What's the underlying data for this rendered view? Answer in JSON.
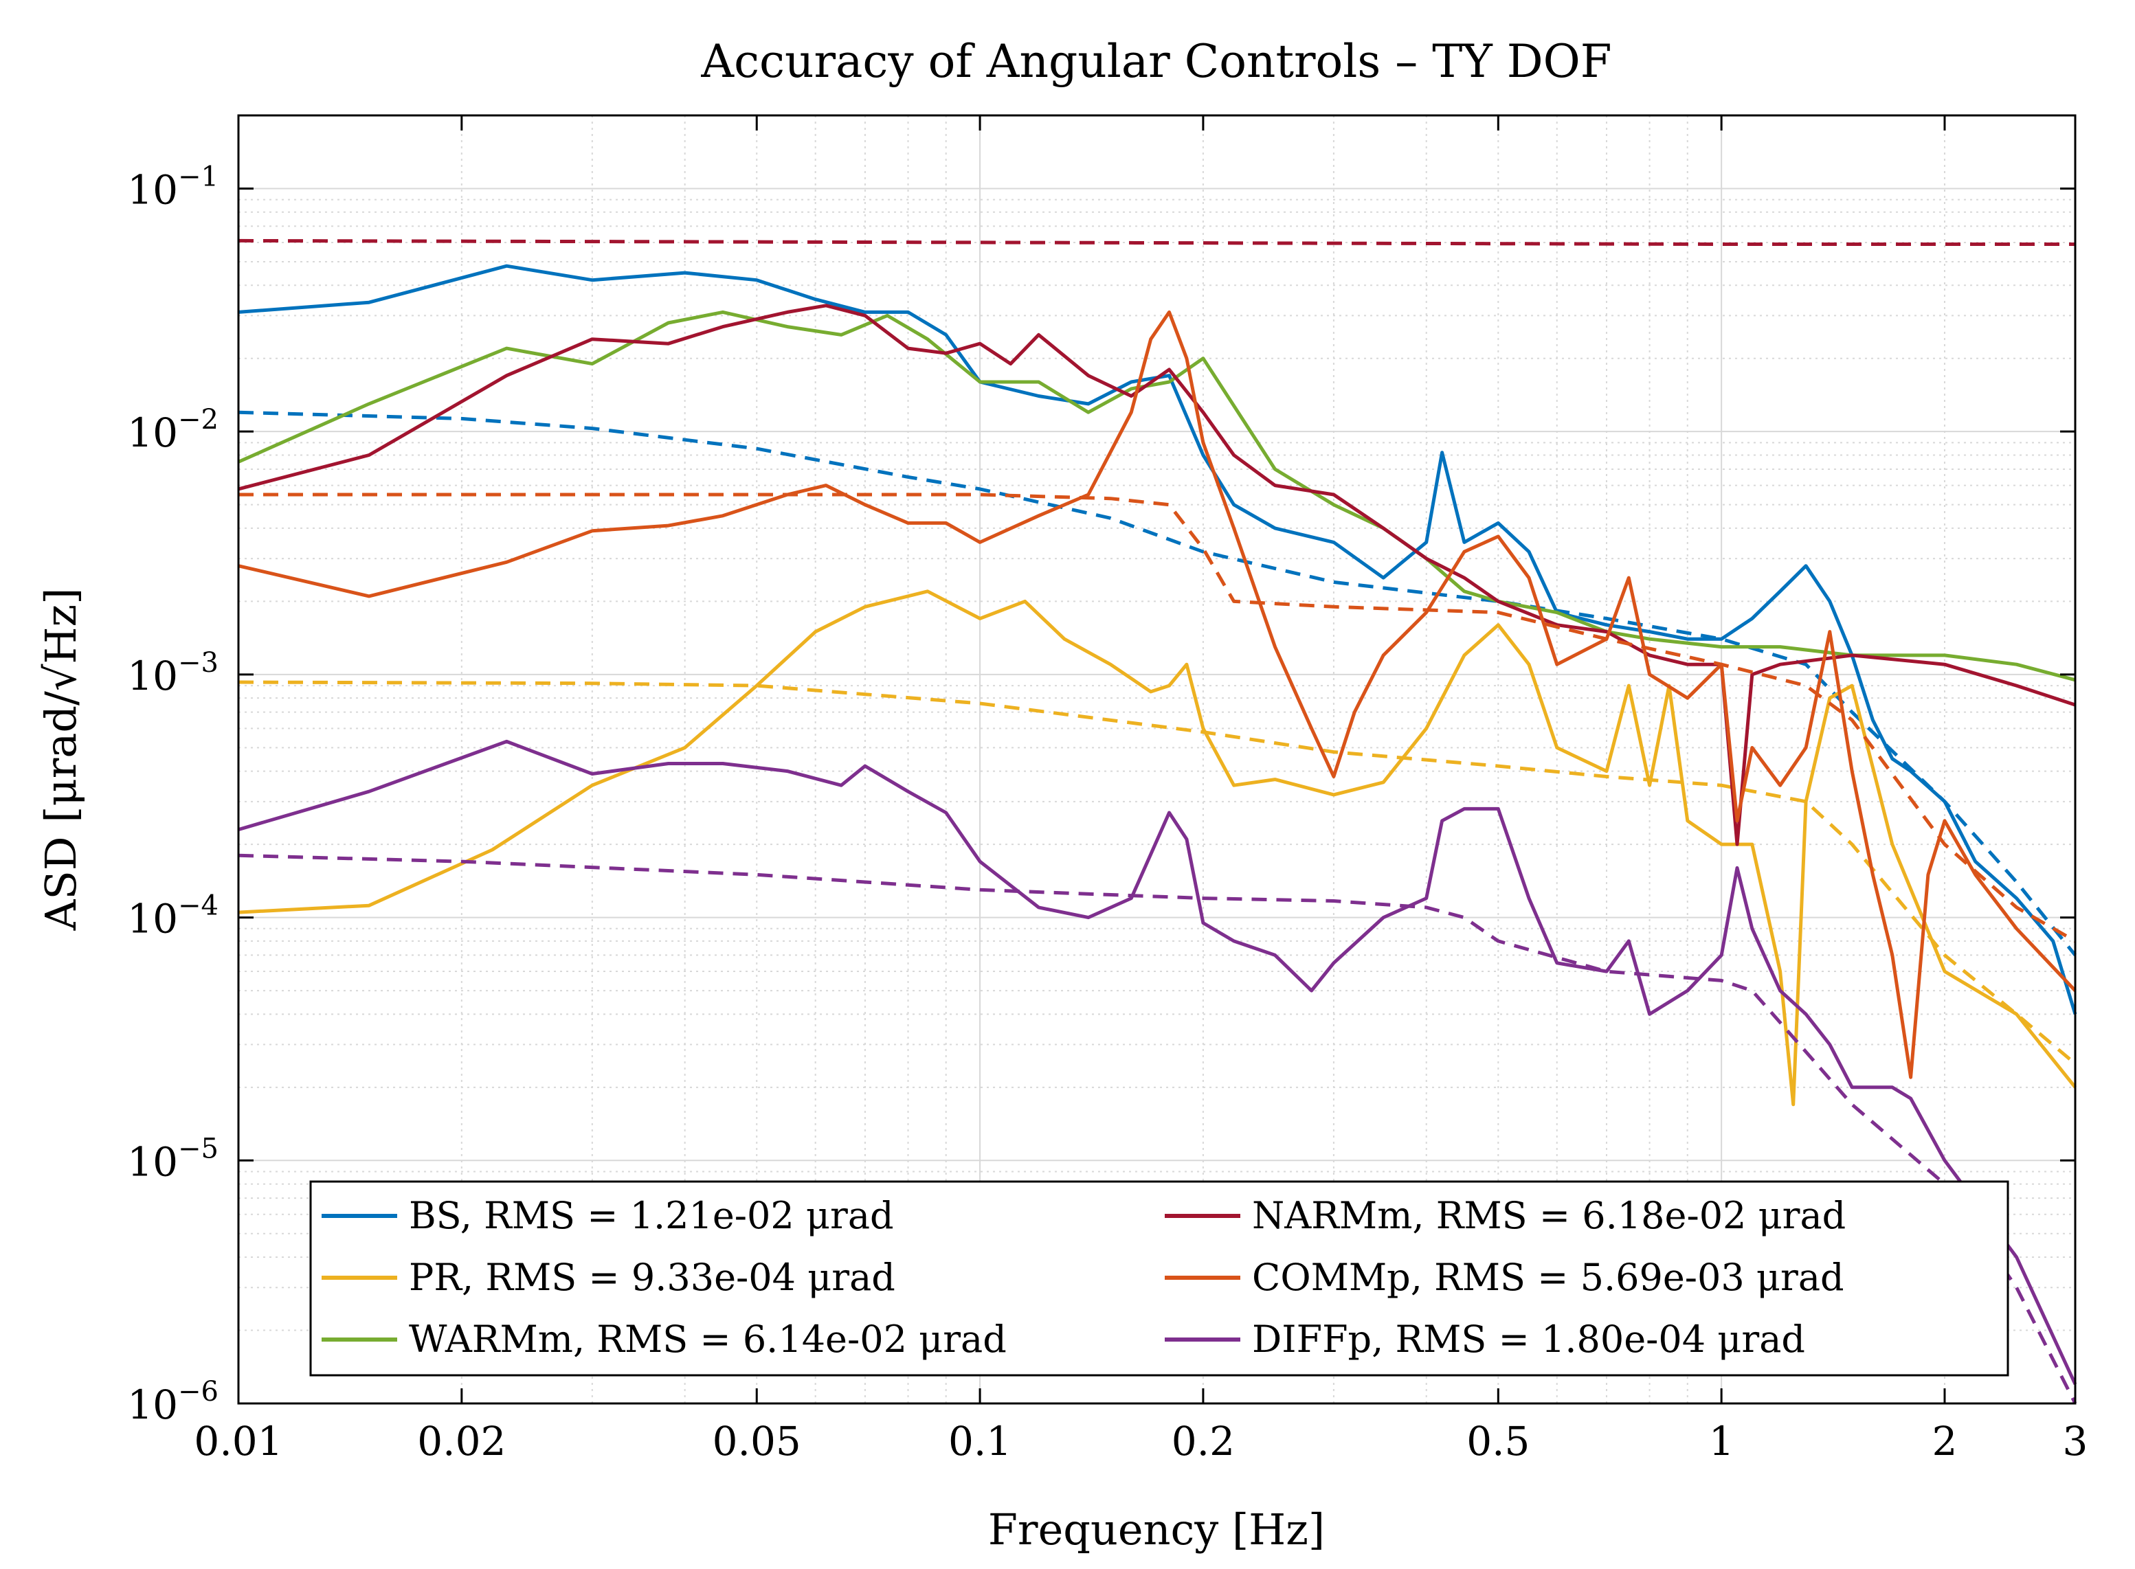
{
  "chart_data": {
    "type": "line",
    "title": "Accuracy of Angular Controls – TY DOF",
    "xlabel": "Frequency [Hz]",
    "ylabel": "ASD [μrad/√Hz]",
    "xscale": "log",
    "yscale": "log",
    "xlim": [
      0.01,
      3
    ],
    "ylim": [
      1e-06,
      0.2
    ],
    "x_ticks": [
      0.01,
      0.02,
      0.05,
      0.1,
      0.2,
      0.5,
      1,
      2,
      3
    ],
    "x_tick_labels": [
      "0.01",
      "0.02",
      "0.05",
      "0.1",
      "0.2",
      "0.5",
      "1",
      "2",
      "3"
    ],
    "y_ticks": [
      {
        "value": 0.1,
        "mantissa": "10",
        "exponent": "−1"
      },
      {
        "value": 0.01,
        "mantissa": "10",
        "exponent": "−2"
      },
      {
        "value": 0.001,
        "mantissa": "10",
        "exponent": "−3"
      },
      {
        "value": 0.0001,
        "mantissa": "10",
        "exponent": "−4"
      },
      {
        "value": 1e-05,
        "mantissa": "10",
        "exponent": "−5"
      },
      {
        "value": 1e-06,
        "mantissa": "10",
        "exponent": "−6"
      }
    ],
    "grid": true,
    "legend_placement": "bottom-center",
    "series": [
      {
        "name": "BS",
        "legend": "BS, RMS = 1.21e-02 μrad",
        "color": "#0072BD",
        "style": "solid",
        "x": [
          0.01,
          0.015,
          0.023,
          0.03,
          0.04,
          0.05,
          0.06,
          0.07,
          0.08,
          0.09,
          0.1,
          0.12,
          0.14,
          0.16,
          0.18,
          0.2,
          0.22,
          0.25,
          0.3,
          0.35,
          0.4,
          0.42,
          0.45,
          0.5,
          0.55,
          0.6,
          0.7,
          0.8,
          0.9,
          1.0,
          1.1,
          1.2,
          1.3,
          1.4,
          1.5,
          1.6,
          1.7,
          1.8,
          2.0,
          2.2,
          2.5,
          2.8,
          3.0
        ],
        "y": [
          0.031,
          0.034,
          0.048,
          0.042,
          0.045,
          0.042,
          0.035,
          0.031,
          0.031,
          0.025,
          0.016,
          0.014,
          0.013,
          0.016,
          0.017,
          0.008,
          0.005,
          0.004,
          0.0035,
          0.0025,
          0.0035,
          0.0082,
          0.0035,
          0.0042,
          0.0032,
          0.0018,
          0.0016,
          0.0015,
          0.0014,
          0.0014,
          0.0017,
          0.0022,
          0.0028,
          0.002,
          0.0012,
          0.00065,
          0.00045,
          0.0004,
          0.0003,
          0.00017,
          0.00012,
          8e-05,
          4e-05
        ]
      },
      {
        "name": "BS RMS",
        "color": "#0072BD",
        "style": "dashed",
        "x": [
          0.01,
          0.02,
          0.03,
          0.05,
          0.08,
          0.1,
          0.15,
          0.2,
          0.3,
          0.5,
          0.7,
          1.0,
          1.3,
          1.5,
          2.0,
          2.5,
          3.0
        ],
        "y": [
          0.012,
          0.0113,
          0.0103,
          0.0085,
          0.0065,
          0.0058,
          0.0044,
          0.0032,
          0.0024,
          0.002,
          0.0017,
          0.0014,
          0.0011,
          0.0007,
          0.0003,
          0.00014,
          7e-05
        ]
      },
      {
        "name": "PR",
        "legend": "PR, RMS = 9.33e-04 μrad",
        "color": "#EDB120",
        "style": "solid",
        "x": [
          0.01,
          0.015,
          0.022,
          0.03,
          0.04,
          0.05,
          0.06,
          0.07,
          0.085,
          0.1,
          0.115,
          0.13,
          0.15,
          0.17,
          0.18,
          0.19,
          0.2,
          0.22,
          0.25,
          0.3,
          0.35,
          0.4,
          0.45,
          0.5,
          0.55,
          0.6,
          0.7,
          0.75,
          0.8,
          0.85,
          0.9,
          1.0,
          1.1,
          1.2,
          1.25,
          1.3,
          1.4,
          1.5,
          1.7,
          2.0,
          2.5,
          3.0
        ],
        "y": [
          0.000105,
          0.000112,
          0.00019,
          0.00035,
          0.0005,
          0.0009,
          0.0015,
          0.0019,
          0.0022,
          0.0017,
          0.002,
          0.0014,
          0.0011,
          0.00085,
          0.0009,
          0.0011,
          0.0006,
          0.00035,
          0.00037,
          0.00032,
          0.00036,
          0.0006,
          0.0012,
          0.0016,
          0.0011,
          0.0005,
          0.0004,
          0.0009,
          0.00035,
          0.0009,
          0.00025,
          0.0002,
          0.0002,
          6e-05,
          1.7e-05,
          0.0003,
          0.0008,
          0.0009,
          0.0002,
          6e-05,
          4e-05,
          2e-05
        ]
      },
      {
        "name": "PR RMS",
        "color": "#EDB120",
        "style": "dashed",
        "x": [
          0.01,
          0.03,
          0.05,
          0.1,
          0.2,
          0.3,
          0.5,
          0.7,
          1.0,
          1.3,
          1.5,
          2.0,
          2.5,
          3.0
        ],
        "y": [
          0.00093,
          0.00092,
          0.0009,
          0.00076,
          0.00058,
          0.00048,
          0.00042,
          0.00038,
          0.00035,
          0.0003,
          0.0002,
          7e-05,
          4e-05,
          2.5e-05
        ]
      },
      {
        "name": "WARMm",
        "legend": "WARMm, RMS = 6.14e-02 μrad",
        "color": "#77AC30",
        "style": "solid",
        "x": [
          0.01,
          0.015,
          0.023,
          0.03,
          0.038,
          0.045,
          0.055,
          0.065,
          0.075,
          0.085,
          0.1,
          0.12,
          0.14,
          0.16,
          0.18,
          0.2,
          0.25,
          0.3,
          0.35,
          0.4,
          0.45,
          0.5,
          0.6,
          0.7,
          0.8,
          1.0,
          1.2,
          1.5,
          2.0,
          2.5,
          3.0
        ],
        "y": [
          0.0075,
          0.013,
          0.022,
          0.019,
          0.028,
          0.031,
          0.027,
          0.025,
          0.03,
          0.024,
          0.016,
          0.016,
          0.012,
          0.015,
          0.016,
          0.02,
          0.007,
          0.005,
          0.004,
          0.003,
          0.0022,
          0.002,
          0.0018,
          0.0015,
          0.0014,
          0.0013,
          0.0013,
          0.0012,
          0.0012,
          0.0011,
          0.00095
        ]
      },
      {
        "name": "NARMm",
        "legend": "NARMm, RMS = 6.18e-02 μrad",
        "color": "#A2142F",
        "style": "solid",
        "x": [
          0.01,
          0.015,
          0.023,
          0.03,
          0.038,
          0.045,
          0.055,
          0.062,
          0.07,
          0.08,
          0.09,
          0.1,
          0.11,
          0.12,
          0.14,
          0.16,
          0.18,
          0.2,
          0.22,
          0.25,
          0.3,
          0.35,
          0.4,
          0.45,
          0.5,
          0.6,
          0.7,
          0.8,
          0.9,
          1.0,
          1.05,
          1.1,
          1.2,
          1.5,
          2.0,
          2.5,
          3.0
        ],
        "y": [
          0.0058,
          0.008,
          0.017,
          0.024,
          0.023,
          0.027,
          0.031,
          0.033,
          0.03,
          0.022,
          0.021,
          0.023,
          0.019,
          0.025,
          0.017,
          0.014,
          0.018,
          0.012,
          0.008,
          0.006,
          0.0055,
          0.004,
          0.003,
          0.0025,
          0.002,
          0.0016,
          0.0015,
          0.0012,
          0.0011,
          0.0011,
          0.0002,
          0.001,
          0.0011,
          0.0012,
          0.0011,
          0.0009,
          0.00075
        ]
      },
      {
        "name": "NARMm RMS",
        "color": "#A2142F",
        "style": "dashed",
        "x": [
          0.01,
          0.1,
          1.0,
          3.0
        ],
        "y": [
          0.061,
          0.06,
          0.059,
          0.059
        ]
      },
      {
        "name": "COMMp",
        "legend": "COMMp, RMS = 5.69e-03 μrad",
        "color": "#D95319",
        "style": "solid",
        "x": [
          0.01,
          0.015,
          0.023,
          0.03,
          0.038,
          0.045,
          0.055,
          0.062,
          0.07,
          0.08,
          0.09,
          0.1,
          0.12,
          0.14,
          0.16,
          0.17,
          0.18,
          0.19,
          0.2,
          0.22,
          0.25,
          0.28,
          0.3,
          0.32,
          0.35,
          0.4,
          0.45,
          0.5,
          0.55,
          0.6,
          0.7,
          0.75,
          0.8,
          0.9,
          1.0,
          1.05,
          1.1,
          1.2,
          1.3,
          1.4,
          1.5,
          1.6,
          1.7,
          1.8,
          1.9,
          2.0,
          2.2,
          2.5,
          3.0
        ],
        "y": [
          0.0028,
          0.0021,
          0.0029,
          0.0039,
          0.0041,
          0.0045,
          0.0055,
          0.006,
          0.005,
          0.0042,
          0.0042,
          0.0035,
          0.0045,
          0.0055,
          0.012,
          0.024,
          0.031,
          0.02,
          0.009,
          0.004,
          0.0013,
          0.0006,
          0.00038,
          0.0007,
          0.0012,
          0.0018,
          0.0032,
          0.0037,
          0.0025,
          0.0011,
          0.0014,
          0.0025,
          0.001,
          0.0008,
          0.0011,
          0.00025,
          0.0005,
          0.00035,
          0.0005,
          0.0015,
          0.0004,
          0.00015,
          7e-05,
          2.2e-05,
          0.00015,
          0.00025,
          0.00015,
          9e-05,
          5e-05
        ]
      },
      {
        "name": "COMMp RMS",
        "color": "#D95319",
        "style": "dashed",
        "x": [
          0.01,
          0.05,
          0.1,
          0.15,
          0.18,
          0.2,
          0.22,
          0.3,
          0.5,
          0.7,
          1.0,
          1.3,
          1.5,
          2.0,
          2.5,
          3.0
        ],
        "y": [
          0.0055,
          0.0055,
          0.0055,
          0.0053,
          0.005,
          0.0033,
          0.002,
          0.0019,
          0.0018,
          0.0014,
          0.0011,
          0.0009,
          0.00065,
          0.0002,
          0.00011,
          8e-05
        ]
      },
      {
        "name": "DIFFp",
        "legend": "DIFFp, RMS = 1.80e-04 μrad",
        "color": "#7E2F8E",
        "style": "solid",
        "x": [
          0.01,
          0.015,
          0.023,
          0.03,
          0.038,
          0.045,
          0.055,
          0.065,
          0.07,
          0.08,
          0.09,
          0.1,
          0.12,
          0.14,
          0.16,
          0.18,
          0.19,
          0.2,
          0.22,
          0.25,
          0.28,
          0.3,
          0.35,
          0.4,
          0.42,
          0.45,
          0.5,
          0.55,
          0.6,
          0.7,
          0.75,
          0.8,
          0.9,
          1.0,
          1.05,
          1.1,
          1.2,
          1.3,
          1.4,
          1.5,
          1.7,
          1.8,
          2.0,
          2.5,
          3.0
        ],
        "y": [
          0.00023,
          0.00033,
          0.00053,
          0.00039,
          0.00043,
          0.00043,
          0.0004,
          0.00035,
          0.00042,
          0.00033,
          0.00027,
          0.00017,
          0.00011,
          0.0001,
          0.00012,
          0.00027,
          0.00021,
          9.5e-05,
          8e-05,
          7e-05,
          5e-05,
          6.5e-05,
          0.0001,
          0.00012,
          0.00025,
          0.00028,
          0.00028,
          0.00012,
          6.5e-05,
          6e-05,
          8e-05,
          4e-05,
          5e-05,
          7e-05,
          0.00016,
          9e-05,
          5e-05,
          4e-05,
          3e-05,
          2e-05,
          2e-05,
          1.8e-05,
          1e-05,
          4e-06,
          1.2e-06
        ]
      },
      {
        "name": "DIFFp RMS",
        "color": "#7E2F8E",
        "style": "dashed",
        "x": [
          0.01,
          0.02,
          0.05,
          0.1,
          0.2,
          0.3,
          0.4,
          0.45,
          0.5,
          0.7,
          1.0,
          1.1,
          1.3,
          1.5,
          2.0,
          2.5,
          3.0
        ],
        "y": [
          0.00018,
          0.00017,
          0.00015,
          0.00013,
          0.00012,
          0.000117,
          0.00011,
          0.0001,
          8e-05,
          6e-05,
          5.5e-05,
          5e-05,
          2.8e-05,
          1.7e-05,
          8e-06,
          3e-06,
          1e-06
        ]
      }
    ],
    "legend_entries": [
      {
        "text": "BS, RMS = 1.21e-02 μrad",
        "color": "#0072BD"
      },
      {
        "text": "PR, RMS = 9.33e-04 μrad",
        "color": "#EDB120"
      },
      {
        "text": "WARMm, RMS = 6.14e-02 μrad",
        "color": "#77AC30"
      },
      {
        "text": "NARMm, RMS = 6.18e-02 μrad",
        "color": "#A2142F"
      },
      {
        "text": "COMMp, RMS = 5.69e-03 μrad",
        "color": "#D95319"
      },
      {
        "text": "DIFFp, RMS = 1.80e-04 μrad",
        "color": "#7E2F8E"
      }
    ]
  }
}
